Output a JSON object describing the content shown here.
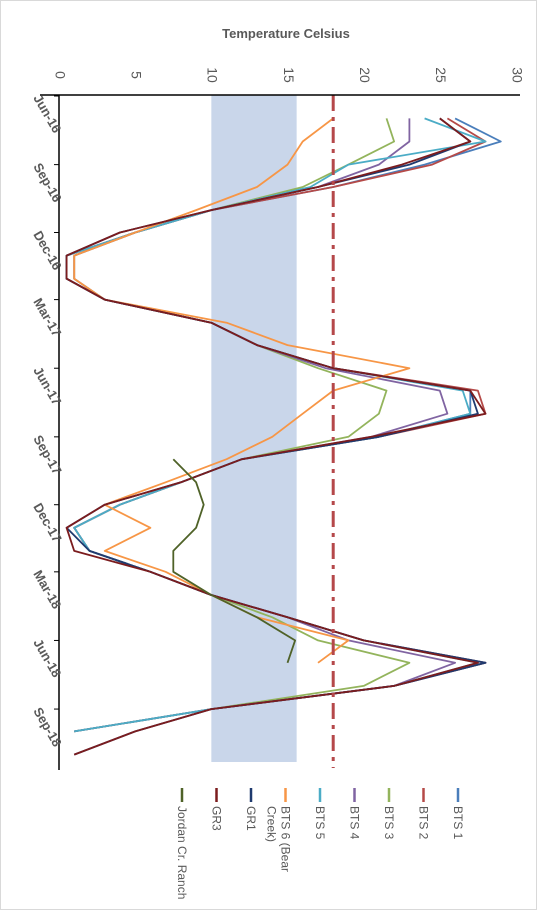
{
  "chart_data": {
    "type": "line",
    "title": "",
    "ylabel": "Temperature Celsius",
    "xlabel": "",
    "ylim": [
      0,
      30
    ],
    "y_ticks": [
      0,
      5,
      10,
      15,
      20,
      25,
      30
    ],
    "x_tick_labels": [
      "Jun-16",
      "Sep-16",
      "Dec-16",
      "Mar-17",
      "Jun-17",
      "Sep-17",
      "Dec-17",
      "Mar-18",
      "Jun-18",
      "Sep-18"
    ],
    "x_ticks": [
      "2016-06-01",
      "2016-09-01",
      "2016-12-01",
      "2017-03-01",
      "2017-06-01",
      "2017-09-01",
      "2017-12-01",
      "2018-03-01",
      "2018-06-01",
      "2018-09-01"
    ],
    "xlim": [
      "2016-06-01",
      "2018-11-15"
    ],
    "orientation": "rotated-90-clockwise",
    "grid": false,
    "legend_position": "bottom",
    "threshold_line": {
      "y": 18,
      "color": "#b5484a",
      "style": "dash-dot"
    },
    "shaded_band": {
      "y": [
        10,
        15.6
      ],
      "color": "#c9d6ea"
    },
    "series": [
      {
        "name": "BTS 1",
        "color": "#4a7ebb",
        "x": [
          "2016-07-01",
          "2016-08-01",
          "2016-09-01",
          "2016-10-01",
          "2016-11-01",
          "2016-12-01",
          "2017-01-01",
          "2017-02-01",
          "2017-03-01",
          "2017-04-01",
          "2017-05-01",
          "2017-06-01",
          "2017-07-01",
          "2017-08-01",
          "2017-09-01",
          "2017-10-01",
          "2017-11-01",
          "2017-12-01",
          "2018-01-01",
          "2018-02-01",
          "2018-03-01",
          "2018-04-01",
          "2018-05-01",
          "2018-06-01",
          "2018-07-01",
          "2018-08-01",
          "2018-09-01",
          "2018-10-01"
        ],
        "y": [
          26,
          29,
          24,
          18,
          10,
          5,
          0.5,
          0.5,
          3,
          10,
          13,
          18,
          27,
          27,
          21,
          12,
          8,
          4,
          1,
          2,
          6,
          10,
          15,
          20,
          28,
          22,
          10,
          1
        ]
      },
      {
        "name": "BTS 2",
        "color": "#b54a48",
        "x": [
          "2016-07-01",
          "2016-08-01",
          "2016-09-01",
          "2016-10-01",
          "2016-11-01",
          "2016-12-01",
          "2017-01-01",
          "2017-02-01",
          "2017-03-01",
          "2017-04-01",
          "2017-05-01",
          "2017-06-01",
          "2017-07-01",
          "2017-08-01",
          "2017-09-01",
          "2017-10-01",
          "2017-11-01",
          "2017-12-01",
          "2018-01-01",
          "2018-02-01",
          "2018-03-01",
          "2018-04-01",
          "2018-05-01",
          "2018-06-01",
          "2018-07-01",
          "2018-08-01",
          "2018-09-01",
          "2018-10-01"
        ],
        "y": [
          25.5,
          28,
          24.5,
          18,
          10,
          5,
          0.5,
          0.5,
          3,
          10,
          13,
          18,
          27.5,
          28,
          21,
          12,
          8,
          4,
          1,
          2,
          6,
          10,
          15,
          20,
          28,
          22,
          10,
          1
        ]
      },
      {
        "name": "BTS 3",
        "color": "#93b45c",
        "x": [
          "2016-07-01",
          "2016-08-01",
          "2016-09-01",
          "2016-10-01",
          "2016-11-01",
          "2016-12-01",
          "2017-01-01",
          "2017-02-01",
          "2017-03-01",
          "2017-04-01",
          "2017-05-01",
          "2017-06-01",
          "2017-07-01",
          "2017-08-01",
          "2017-09-01",
          "2017-10-01",
          "2017-11-01",
          "2017-12-01",
          "2018-01-01",
          "2018-02-01",
          "2018-03-01",
          "2018-04-01",
          "2018-05-01",
          "2018-06-01",
          "2018-07-01",
          "2018-08-01",
          "2018-09-01",
          "2018-10-01"
        ],
        "y": [
          21.5,
          22,
          19,
          16,
          10,
          5,
          1,
          1,
          3,
          10,
          13,
          17,
          21.5,
          21,
          19,
          12,
          8,
          4,
          1,
          2,
          6,
          10,
          14,
          17,
          23,
          20,
          10,
          1
        ]
      },
      {
        "name": "BTS 4",
        "color": "#8064a2",
        "x": [
          "2016-07-01",
          "2016-08-01",
          "2016-09-01",
          "2016-10-01",
          "2016-11-01",
          "2016-12-01",
          "2017-01-01",
          "2017-02-01",
          "2017-03-01",
          "2017-04-01",
          "2017-05-01",
          "2017-06-01",
          "2017-07-01",
          "2017-08-01",
          "2017-09-01",
          "2017-10-01",
          "2017-11-01",
          "2017-12-01",
          "2018-01-01",
          "2018-02-01",
          "2018-03-01",
          "2018-04-01",
          "2018-05-01",
          "2018-06-01",
          "2018-07-01",
          "2018-08-01",
          "2018-09-01",
          "2018-10-01"
        ],
        "y": [
          23,
          23,
          21,
          17,
          10,
          5,
          1,
          1,
          3,
          10,
          13,
          17.5,
          25,
          25.5,
          20.5,
          12,
          8,
          4,
          1,
          2,
          6,
          10,
          15,
          19,
          26,
          22,
          10,
          1
        ]
      },
      {
        "name": "BTS 5",
        "color": "#4bacc6",
        "x": [
          "2016-07-01",
          "2016-08-01",
          "2016-09-01",
          "2016-10-01",
          "2016-11-01",
          "2016-12-01",
          "2017-01-01",
          "2017-02-01",
          "2017-03-01",
          "2017-04-01",
          "2017-05-01",
          "2017-06-01",
          "2017-07-01",
          "2017-08-01",
          "2017-09-01",
          "2017-10-01",
          "2017-11-01",
          "2017-12-01",
          "2018-01-01",
          "2018-02-01",
          "2018-03-01",
          "2018-04-01",
          "2018-05-01",
          "2018-06-01",
          "2018-07-01",
          "2018-08-01",
          "2018-09-01",
          "2018-10-01"
        ],
        "y": [
          24,
          28,
          19,
          16.5,
          10,
          5,
          0.5,
          0.5,
          3,
          10,
          13,
          18,
          26.5,
          27,
          21,
          12,
          8,
          4,
          1,
          2,
          6,
          10,
          15,
          20,
          27.5,
          22,
          10,
          1
        ]
      },
      {
        "name": "BTS 6 (Bear Creek)",
        "color": "#f79646",
        "x": [
          "2016-07-01",
          "2016-08-01",
          "2016-09-01",
          "2016-10-01",
          "2016-11-01",
          "2016-12-01",
          "2017-01-01",
          "2017-02-01",
          "2017-03-01",
          "2017-04-01",
          "2017-05-01",
          "2017-06-01",
          "2017-07-01",
          "2017-08-01",
          "2017-09-01",
          "2017-10-01",
          "2017-11-01",
          "2017-12-01",
          "2018-01-01",
          "2018-02-01",
          "2018-03-01",
          "2018-04-01",
          "2018-05-01",
          "2018-06-01",
          "2018-07-01"
        ],
        "y": [
          18,
          16,
          15,
          13,
          9,
          5,
          1,
          1,
          3,
          11,
          15,
          23,
          18,
          16,
          14,
          11,
          7,
          3,
          6,
          3,
          7,
          10,
          13,
          19,
          17
        ]
      },
      {
        "name": "GR1",
        "color": "#1f3a6e",
        "x": [
          "2016-07-01",
          "2016-08-01",
          "2016-09-01",
          "2016-10-01",
          "2016-11-01",
          "2016-12-01",
          "2017-01-01",
          "2017-02-01",
          "2017-03-01",
          "2017-04-01",
          "2017-05-01",
          "2017-06-01",
          "2017-07-01",
          "2017-08-01",
          "2017-09-01",
          "2017-10-01",
          "2017-11-01",
          "2017-12-01",
          "2018-01-01",
          "2018-02-01",
          "2018-03-01",
          "2018-04-01",
          "2018-05-01",
          "2018-06-01",
          "2018-07-01",
          "2018-08-01",
          "2018-09-01",
          "2018-10-01",
          "2018-11-01"
        ],
        "y": [
          25,
          27,
          23,
          17,
          10,
          4,
          0.5,
          0.5,
          3,
          10,
          13,
          18,
          27,
          27.5,
          21,
          12,
          8,
          3,
          0.5,
          2,
          6,
          10,
          15,
          20,
          28,
          22,
          10,
          5,
          1
        ]
      },
      {
        "name": "GR3",
        "color": "#7b1c1e",
        "x": [
          "2016-07-01",
          "2016-08-01",
          "2016-09-01",
          "2016-10-01",
          "2016-11-01",
          "2016-12-01",
          "2017-01-01",
          "2017-02-01",
          "2017-03-01",
          "2017-04-01",
          "2017-05-01",
          "2017-06-01",
          "2017-07-01",
          "2017-08-01",
          "2017-09-01",
          "2017-10-01",
          "2017-11-01",
          "2017-12-01",
          "2018-01-01",
          "2018-02-01",
          "2018-03-01",
          "2018-04-01",
          "2018-05-01",
          "2018-06-01",
          "2018-07-01",
          "2018-08-01",
          "2018-09-01",
          "2018-10-01",
          "2018-11-01"
        ],
        "y": [
          25,
          27,
          22.5,
          17,
          10,
          4,
          0.5,
          0.5,
          3,
          10,
          13,
          18,
          27,
          28,
          20.5,
          12,
          8,
          3,
          0.5,
          1,
          6,
          10,
          15,
          20,
          27.5,
          22,
          10,
          5,
          1
        ]
      },
      {
        "name": "Jordan Cr. Ranch",
        "color": "#4f6228",
        "x": [
          "2017-10-01",
          "2017-11-01",
          "2017-12-01",
          "2018-01-01",
          "2018-02-01",
          "2018-03-01",
          "2018-04-01",
          "2018-05-01",
          "2018-06-01",
          "2018-07-01"
        ],
        "y": [
          7.5,
          9,
          9.5,
          9,
          7.5,
          7.5,
          10,
          13,
          15.5,
          15
        ]
      }
    ]
  }
}
